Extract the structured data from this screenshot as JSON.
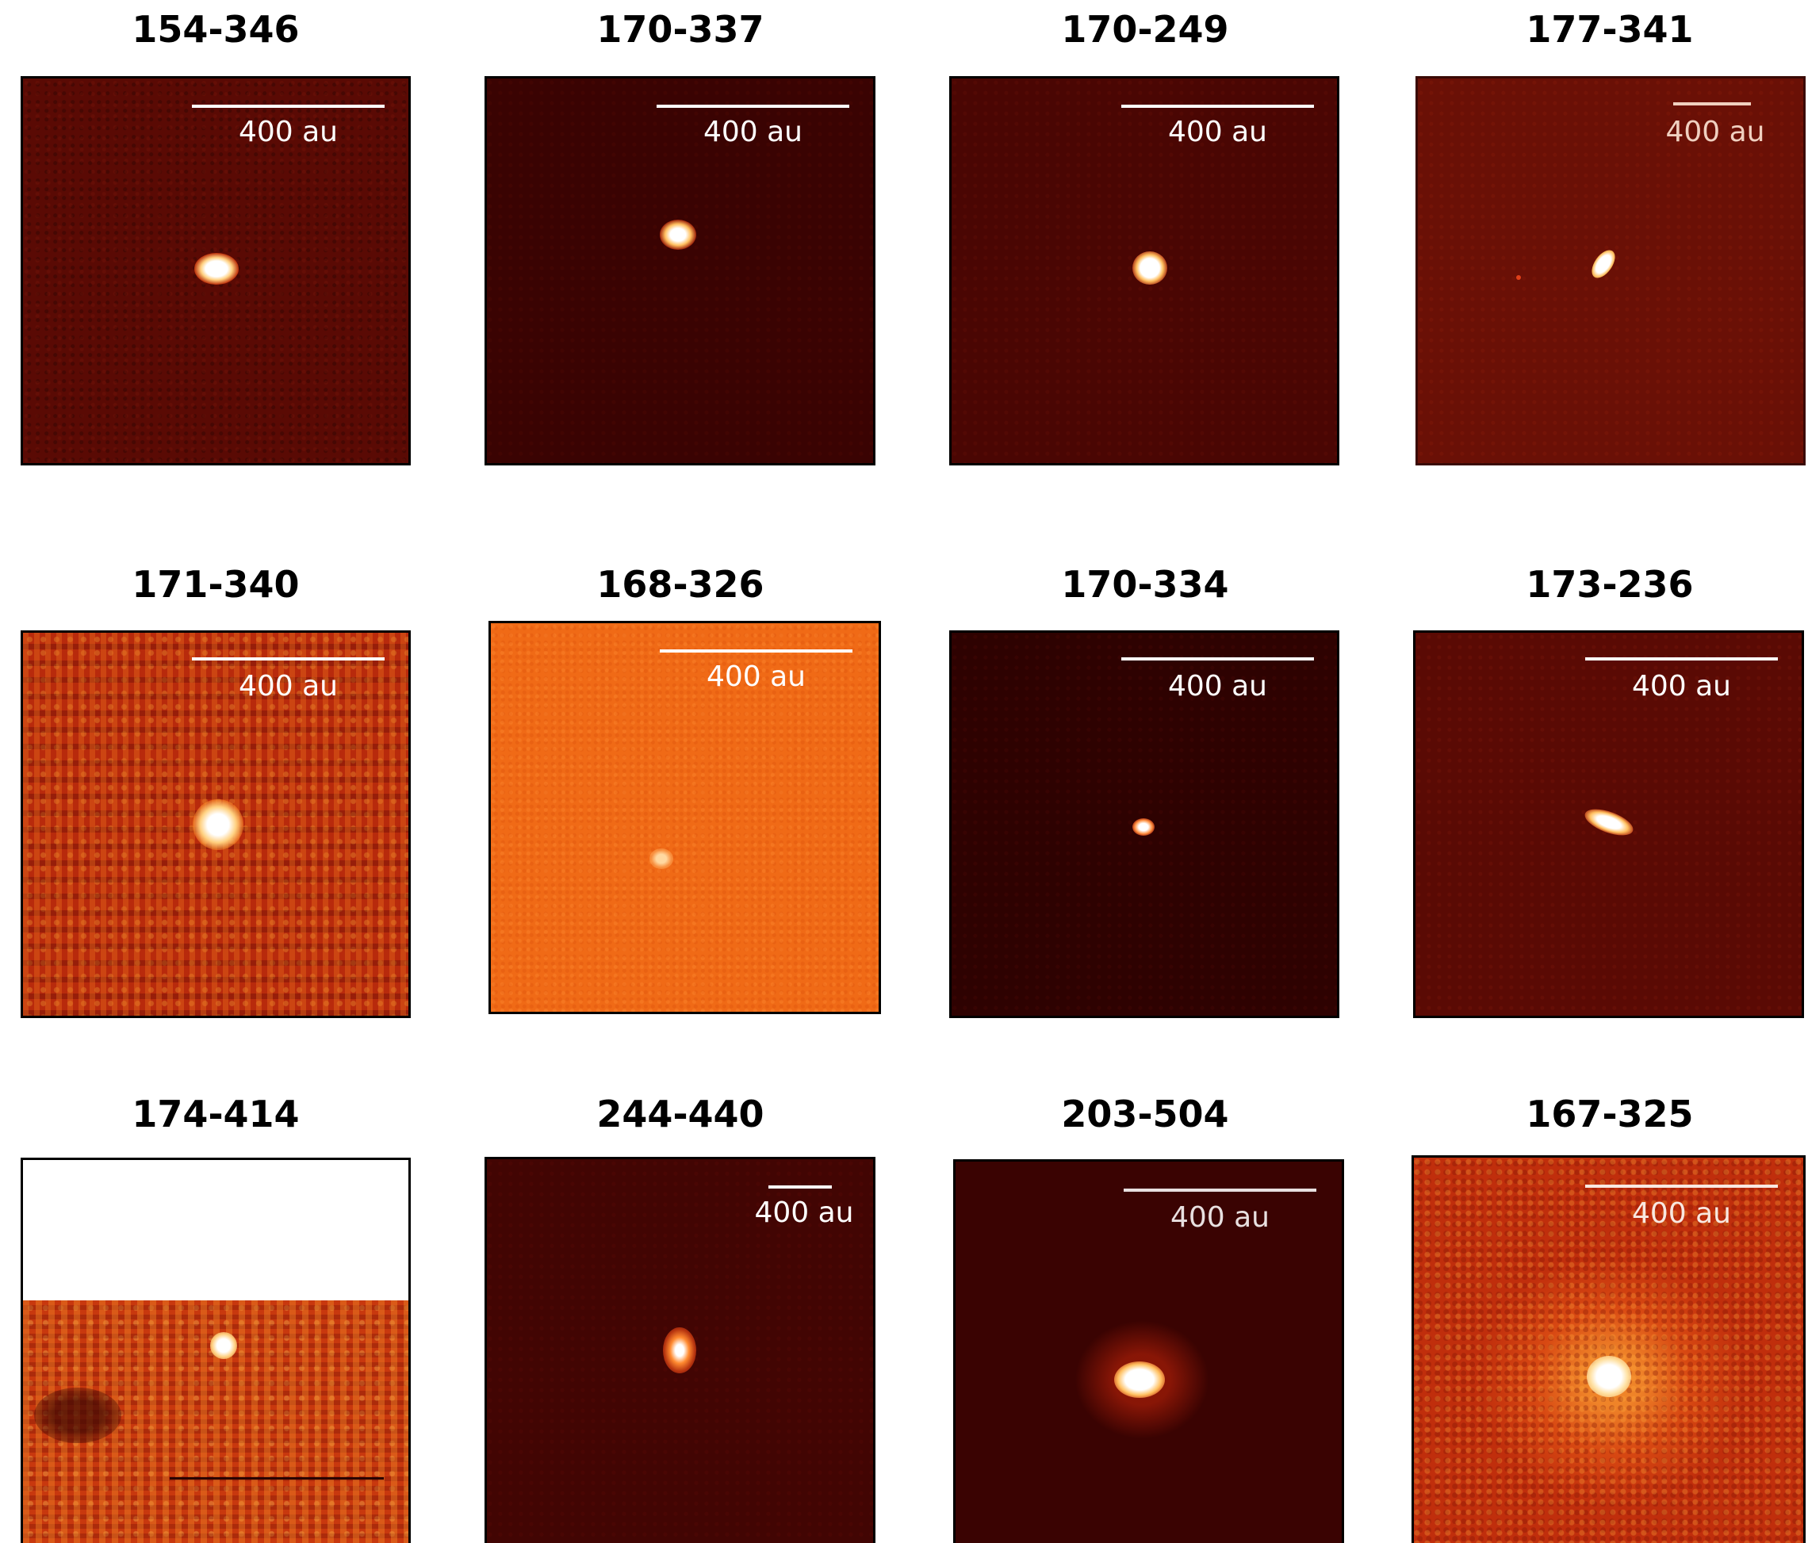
{
  "scale_label": "400 au",
  "panels": [
    {
      "title": "154-346",
      "bg": "#5a0a04"
    },
    {
      "title": "170-337",
      "bg": "#3a0302"
    },
    {
      "title": "170-249",
      "bg": "#4a0603"
    },
    {
      "title": "177-341",
      "bg": "#6a1006"
    },
    {
      "title": "171-340",
      "bg": "#b82a0c"
    },
    {
      "title": "168-326",
      "bg": "#f06a16"
    },
    {
      "title": "170-334",
      "bg": "#2e0201"
    },
    {
      "title": "173-236",
      "bg": "#5a0a04"
    },
    {
      "title": "174-414",
      "bg": "#c8380e"
    },
    {
      "title": "244-440",
      "bg": "#420503"
    },
    {
      "title": "203-504",
      "bg": "#3a0302"
    },
    {
      "title": "167-325",
      "bg": "#c02e0c"
    }
  ]
}
